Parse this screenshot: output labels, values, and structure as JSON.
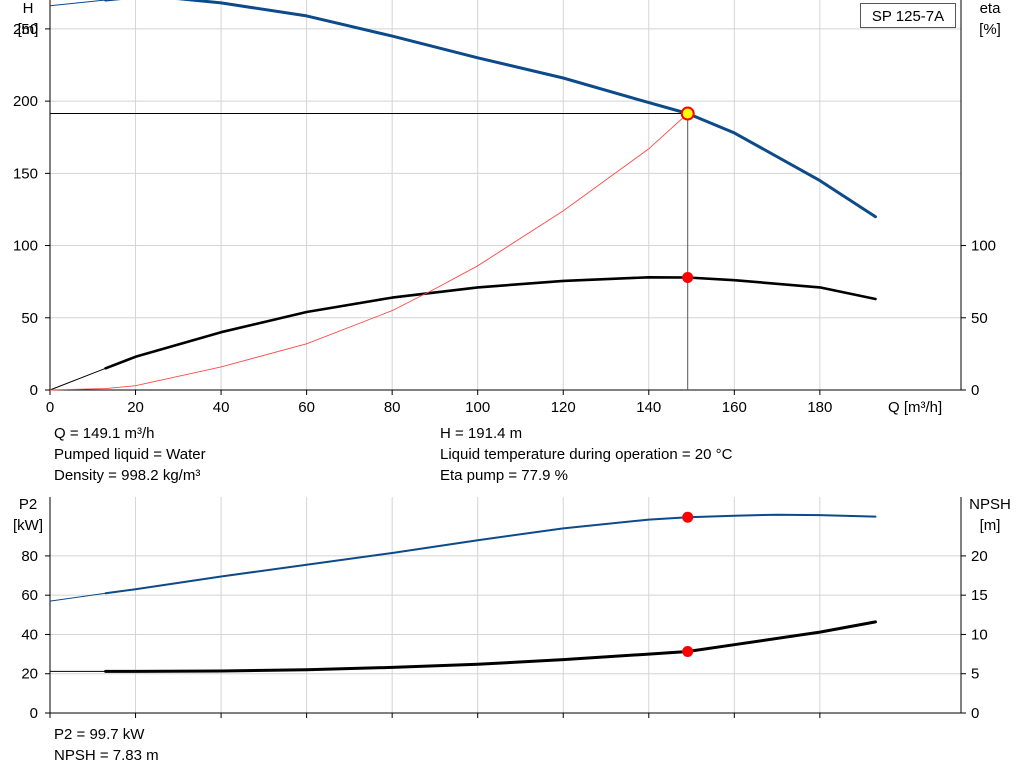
{
  "model": "SP 125-7A",
  "info": {
    "q": "Q = 149.1 m³/h",
    "liquid": "Pumped liquid = Water",
    "density": "Density = 998.2 kg/m³",
    "h": "H = 191.4 m",
    "temperature": "Liquid temperature during operation = 20 °C",
    "eta": "Eta pump = 77.9 %",
    "p2": "P2 = 99.7 kW",
    "npsh": "NPSH = 7.83 m"
  },
  "colors": {
    "head": "#0d4a8a",
    "eta": "#000000",
    "system": "#ff4a4a",
    "duty_point": "#ff0000",
    "duty_fill": "#ffff00",
    "grid": "#d4d4d4"
  },
  "chart_data": [
    {
      "type": "line",
      "title": "",
      "x_label": "Q [m³/h]",
      "y_left_label_top": "H",
      "y_left_label_unit": "[m]",
      "y_right_label_top": "eta",
      "y_right_label_unit": "[%]",
      "xlim": [
        0,
        213
      ],
      "x_ticks": [
        0,
        20,
        40,
        60,
        80,
        100,
        120,
        140,
        160,
        180
      ],
      "ylim_left": [
        0,
        270
      ],
      "y_ticks_left": [
        0,
        50,
        100,
        150,
        200,
        250
      ],
      "ylim_right": [
        0,
        270
      ],
      "y_ticks_right": [
        0,
        50,
        100
      ],
      "grid": true,
      "series": [
        {
          "name": "",
          "role": "head",
          "axis": "left",
          "x": [
            0,
            13,
            20,
            30,
            40,
            60,
            80,
            100,
            120,
            140,
            149.1,
            160,
            180,
            193
          ],
          "y": [
            266,
            270,
            272,
            271,
            268,
            259,
            245,
            230,
            216,
            199,
            191.4,
            178,
            145,
            120
          ]
        },
        {
          "name": "",
          "role": "eta",
          "axis": "right",
          "x": [
            0,
            13,
            20,
            40,
            60,
            80,
            100,
            120,
            140,
            149.1,
            160,
            180,
            193
          ],
          "y": [
            0,
            15,
            23,
            40,
            54,
            64,
            71,
            75.5,
            78,
            77.9,
            76,
            71,
            63
          ]
        },
        {
          "name": "",
          "role": "system",
          "axis": "left",
          "x": [
            0,
            13,
            20,
            40,
            60,
            80,
            90,
            100,
            120,
            140,
            149.1
          ],
          "y": [
            0,
            1,
            3,
            16,
            32,
            55,
            70,
            86,
            124,
            167,
            191.4
          ]
        }
      ],
      "duty_point": {
        "q": 149.1,
        "h": 191.4,
        "eta": 77.9
      }
    },
    {
      "type": "line",
      "title": "",
      "x_label": "",
      "y_left_label_top": "P2",
      "y_left_label_unit": "[kW]",
      "y_right_label_top": "NPSH",
      "y_right_label_unit": "[m]",
      "xlim": [
        0,
        213
      ],
      "x_ticks": [
        0,
        20,
        40,
        60,
        80,
        100,
        120,
        140,
        160,
        180
      ],
      "ylim_left": [
        0,
        110
      ],
      "y_ticks_left": [
        0,
        20,
        40,
        60,
        80
      ],
      "ylim_right": [
        0,
        27.5
      ],
      "y_ticks_right": [
        0,
        5,
        10,
        15,
        20
      ],
      "grid": true,
      "series": [
        {
          "name": "",
          "role": "p2",
          "axis": "left",
          "x": [
            0,
            13,
            20,
            40,
            60,
            80,
            100,
            120,
            140,
            149.1,
            160,
            170,
            180,
            193
          ],
          "y": [
            57,
            61,
            63,
            69.5,
            75.5,
            81.5,
            88,
            94,
            98.5,
            99.7,
            100.5,
            101,
            100.8,
            100
          ]
        },
        {
          "name": "",
          "role": "npsh",
          "axis": "right",
          "x": [
            0,
            13,
            20,
            40,
            60,
            80,
            100,
            120,
            140,
            149.1,
            160,
            180,
            193
          ],
          "y": [
            5.3,
            5.3,
            5.3,
            5.35,
            5.5,
            5.8,
            6.2,
            6.8,
            7.5,
            7.83,
            8.7,
            10.3,
            11.6
          ]
        }
      ],
      "duty_point": {
        "q": 149.1,
        "p2": 99.7,
        "npsh": 7.83
      }
    }
  ]
}
